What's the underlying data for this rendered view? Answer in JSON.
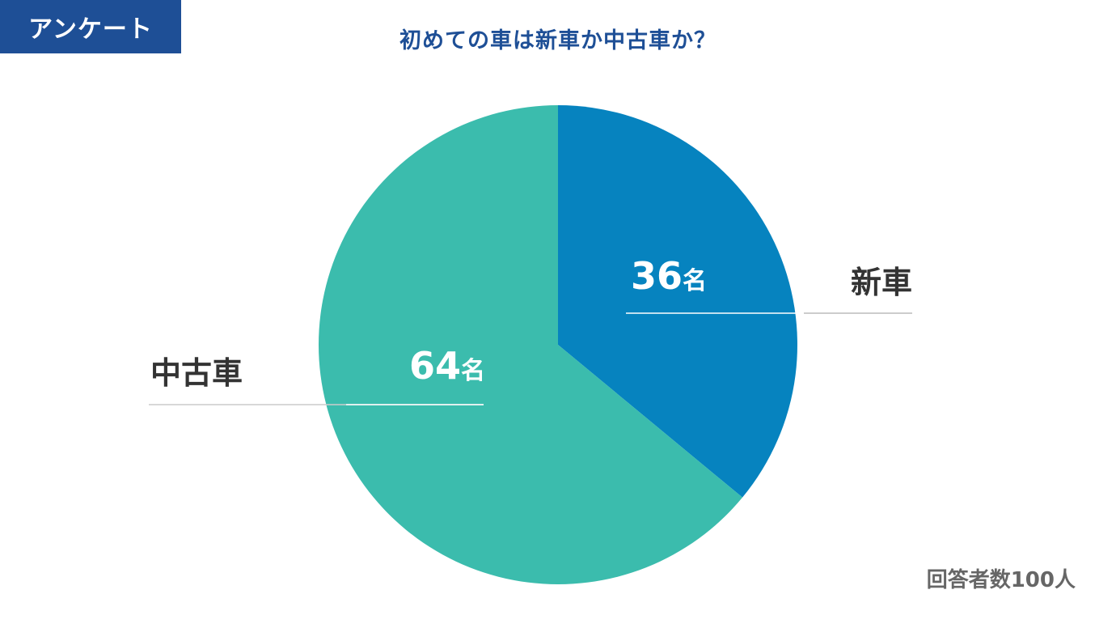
{
  "header": {
    "tag_label": "アンケート",
    "title": "初めての車は新車か中古車か？"
  },
  "chart_data": {
    "type": "pie",
    "title": "初めての車は新車か中古車か？",
    "unit": "名",
    "slices": [
      {
        "label": "新車",
        "value": 36,
        "color": "#0683bf"
      },
      {
        "label": "中古車",
        "value": 64,
        "color": "#3bbcad"
      }
    ]
  },
  "footer": {
    "note": "回答者数100人"
  }
}
